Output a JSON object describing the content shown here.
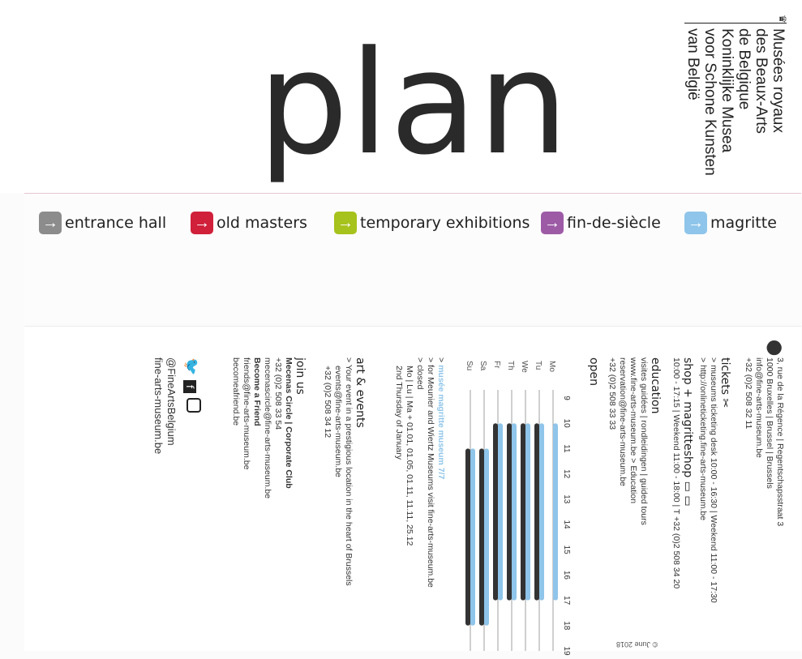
{
  "header": {
    "title": "plan",
    "brand_lines": [
      "Musées royaux",
      "des Beaux-Arts",
      "de Belgique",
      "Koninklijke Musea",
      "voor Schone Kunsten",
      "van België"
    ]
  },
  "legend": [
    {
      "label": "entrance hall",
      "color": "#8c8c8c",
      "icon": "arrow-right-icon"
    },
    {
      "label": "old masters",
      "color": "#d0203a",
      "icon": "arrow-right-icon"
    },
    {
      "label": "temporary exhibitions",
      "color": "#a6c21c",
      "icon": "arrow-right-icon"
    },
    {
      "label": "fin-de-siècle",
      "color": "#9d5ba6",
      "icon": "arrow-right-icon"
    },
    {
      "label": "magritte",
      "color": "#8fc5ea",
      "icon": "arrow-right-icon"
    }
  ],
  "address": [
    "3, rue de la Régence | Regentschapsstraat 3",
    "1000 Bruxelles | Brussel | Brussels",
    "info@fine-arts-museum.be",
    "+32 (0)2 508 32 11"
  ],
  "tickets": {
    "title": "tickets",
    "lines": [
      "museums ticketing desk 10:00 - 16:30 | Weekend 11:00 - 17:30",
      "http://onlineticketing.fine-arts-museum.be"
    ]
  },
  "shop": {
    "title": "shop + magritteshop",
    "lines": [
      "10:00 - 17:15 | Weekend 11:00 - 18:00 | T +32 (0)2 508 34 20"
    ]
  },
  "education": {
    "title": "education",
    "lines": [
      "visites guidées | rondleidingen | guided tours",
      "www.fine-arts-museum.be > Education",
      "reservation@fine-arts-museum.be",
      "+32 (0)2 508 33 33"
    ]
  },
  "open": {
    "title": "open",
    "notes": [
      "musée magritte museum 7/7",
      "for Meunier and Wiertz Museums visit fine-arts-museum.be",
      "closed",
      "Mo | Lu | Ma + 01.01, 01.05, 01.11, 11.11, 25.12",
      "2nd Thursday of January"
    ]
  },
  "events": {
    "title": "art & events",
    "lines": [
      "Your event in a prestigious location in the heart of Brussels",
      "events@fine-arts-museum.be",
      "+32 (0)2 508 34 12"
    ]
  },
  "join": {
    "title": "join us",
    "lines": [
      "Mecenas Circle | Corporate Club",
      "+32 (0)2 508 33 54",
      "mecenascircle@fine-arts-museum.be",
      "Become a Friend",
      "friends@fine-arts-museum.be",
      "becomeafriend.be"
    ]
  },
  "social": {
    "handle": "@FineArtsBelgium",
    "site": "fine-arts-museum.be"
  },
  "footer": {
    "date": "© June 2018"
  },
  "chart_data": {
    "type": "bar",
    "x": [
      9,
      10,
      11,
      12,
      13,
      14,
      15,
      16,
      17,
      18,
      19
    ],
    "categories": [
      "Mo",
      "Tu",
      "We",
      "Th",
      "Fr",
      "Sa",
      "Su"
    ],
    "series": [
      {
        "name": "musée magritte museum 7/7",
        "values": [
          [
            10,
            17
          ],
          [
            10,
            17
          ],
          [
            10,
            17
          ],
          [
            10,
            17
          ],
          [
            10,
            17
          ],
          [
            11,
            18
          ],
          [
            11,
            18
          ]
        ],
        "color": "#8fc5ea"
      },
      {
        "values": [
          null,
          [
            10,
            17
          ],
          [
            10,
            17
          ],
          [
            10,
            17
          ],
          [
            10,
            17
          ],
          [
            11,
            18
          ],
          [
            11,
            18
          ]
        ],
        "color": "#333333"
      }
    ]
  }
}
